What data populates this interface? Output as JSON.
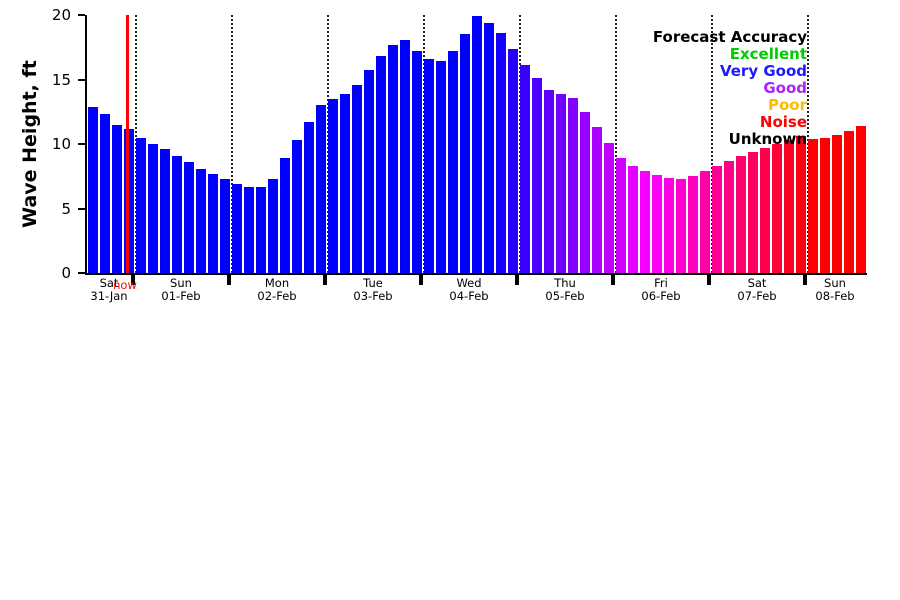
{
  "chart_data": {
    "type": "bar",
    "title": "",
    "ylabel": "Wave Height, ft",
    "xlabel": "",
    "ylim": [
      0,
      20
    ],
    "yticks": [
      0,
      5,
      10,
      15,
      20
    ],
    "grid": "vertical-dotted-day-boundaries",
    "values": [
      12.9,
      12.3,
      11.5,
      11.2,
      10.5,
      10.0,
      9.6,
      9.1,
      8.6,
      8.1,
      7.7,
      7.3,
      6.9,
      6.7,
      6.7,
      7.3,
      8.9,
      10.3,
      11.7,
      13.0,
      13.5,
      13.9,
      14.6,
      15.7,
      16.8,
      17.7,
      18.1,
      17.2,
      16.6,
      16.4,
      17.2,
      18.5,
      19.9,
      19.4,
      18.6,
      17.4,
      16.1,
      15.1,
      14.2,
      13.9,
      13.6,
      12.5,
      11.3,
      10.1,
      8.9,
      8.3,
      7.9,
      7.6,
      7.4,
      7.3,
      7.5,
      7.9,
      8.3,
      8.7,
      9.1,
      9.4,
      9.7,
      10.0,
      10.3,
      10.6,
      10.4,
      10.5,
      10.7,
      11.0,
      11.4
    ],
    "bar_colors": [
      "#0000ff",
      "#0000ff",
      "#0000ff",
      "#0000ff",
      "#0000ff",
      "#0000ff",
      "#0000ff",
      "#0000ff",
      "#0000ff",
      "#0000ff",
      "#0000ff",
      "#0000ff",
      "#0000ff",
      "#0000ff",
      "#0000ff",
      "#0000ff",
      "#0000ff",
      "#0000ff",
      "#0000ff",
      "#0000ff",
      "#0000ff",
      "#0000ff",
      "#0000ff",
      "#0000ff",
      "#0000ff",
      "#0000ff",
      "#0000ff",
      "#0000ff",
      "#0000ff",
      "#0000ff",
      "#0000ff",
      "#0000ff",
      "#0000ff",
      "#0000ff",
      "#1300ff",
      "#2600ff",
      "#3900ff",
      "#4c00ff",
      "#5e00ff",
      "#7100ff",
      "#8400ff",
      "#9700ff",
      "#aa00ff",
      "#bd00ff",
      "#d000ff",
      "#e300ff",
      "#f600ff",
      "#ff00f6",
      "#ff00e3",
      "#ff00d0",
      "#ff00bd",
      "#ff00aa",
      "#ff0097",
      "#ff0084",
      "#ff0071",
      "#ff005e",
      "#ff004c",
      "#ff0039",
      "#ff0026",
      "#ff0013",
      "#ff0000",
      "#ff0000",
      "#ff0000",
      "#ff0000",
      "#ff0000"
    ],
    "days": [
      {
        "label": "Sat",
        "date": "31-Jan",
        "bars": 4
      },
      {
        "label": "Sun",
        "date": "01-Feb",
        "bars": 8
      },
      {
        "label": "Mon",
        "date": "02-Feb",
        "bars": 8
      },
      {
        "label": "Tue",
        "date": "03-Feb",
        "bars": 8
      },
      {
        "label": "Wed",
        "date": "04-Feb",
        "bars": 8
      },
      {
        "label": "Thu",
        "date": "05-Feb",
        "bars": 8
      },
      {
        "label": "Fri",
        "date": "06-Feb",
        "bars": 8
      },
      {
        "label": "Sat",
        "date": "07-Feb",
        "bars": 8
      },
      {
        "label": "Sun",
        "date": "08-Feb",
        "bars": 5
      }
    ],
    "now_marker": {
      "label": "now",
      "bar_position": 3.35,
      "color": "#ff0000"
    },
    "legend": {
      "position": "top-right",
      "title": "Forecast Accuracy",
      "title_color": "#000000",
      "entries": [
        {
          "label": "Excellent",
          "color": "#00cc00"
        },
        {
          "label": "Very Good",
          "color": "#1a1aff"
        },
        {
          "label": "Good",
          "color": "#aa22ff"
        },
        {
          "label": "Poor",
          "color": "#ffbb00"
        },
        {
          "label": "Noise",
          "color": "#ff0000"
        },
        {
          "label": "Unknown",
          "color": "#000000"
        }
      ]
    }
  }
}
